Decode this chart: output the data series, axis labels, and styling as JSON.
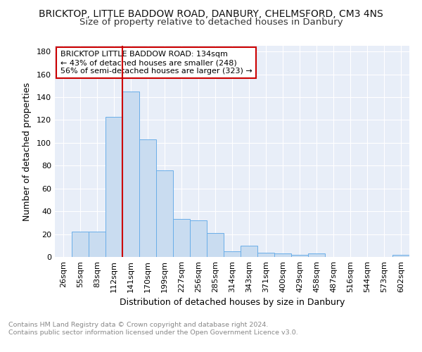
{
  "title1": "BRICKTOP, LITTLE BADDOW ROAD, DANBURY, CHELMSFORD, CM3 4NS",
  "title2": "Size of property relative to detached houses in Danbury",
  "xlabel": "Distribution of detached houses by size in Danbury",
  "ylabel": "Number of detached properties",
  "categories": [
    "26sqm",
    "55sqm",
    "83sqm",
    "112sqm",
    "141sqm",
    "170sqm",
    "199sqm",
    "227sqm",
    "256sqm",
    "285sqm",
    "314sqm",
    "343sqm",
    "371sqm",
    "400sqm",
    "429sqm",
    "458sqm",
    "487sqm",
    "516sqm",
    "544sqm",
    "573sqm",
    "602sqm"
  ],
  "values": [
    0,
    22,
    22,
    123,
    145,
    103,
    76,
    33,
    32,
    21,
    5,
    10,
    4,
    3,
    2,
    3,
    0,
    0,
    0,
    0,
    2
  ],
  "bar_color": "#c9dcf0",
  "bar_edge_color": "#6aaee8",
  "vline_color": "#cc0000",
  "vline_index": 4,
  "annotation_text": "BRICKTOP LITTLE BADDOW ROAD: 134sqm\n← 43% of detached houses are smaller (248)\n56% of semi-detached houses are larger (323) →",
  "annotation_box_facecolor": "#ffffff",
  "annotation_box_edgecolor": "#cc0000",
  "ylim": [
    0,
    185
  ],
  "yticks": [
    0,
    20,
    40,
    60,
    80,
    100,
    120,
    140,
    160,
    180
  ],
  "plot_bg_color": "#e8eef8",
  "fig_bg_color": "#ffffff",
  "grid_color": "#ffffff",
  "title1_fontsize": 10,
  "title2_fontsize": 9.5,
  "xlabel_fontsize": 9,
  "ylabel_fontsize": 9,
  "tick_fontsize": 8,
  "annot_fontsize": 8,
  "footer_fontsize": 6.8,
  "footer_text": "Contains HM Land Registry data © Crown copyright and database right 2024.\nContains public sector information licensed under the Open Government Licence v3.0."
}
